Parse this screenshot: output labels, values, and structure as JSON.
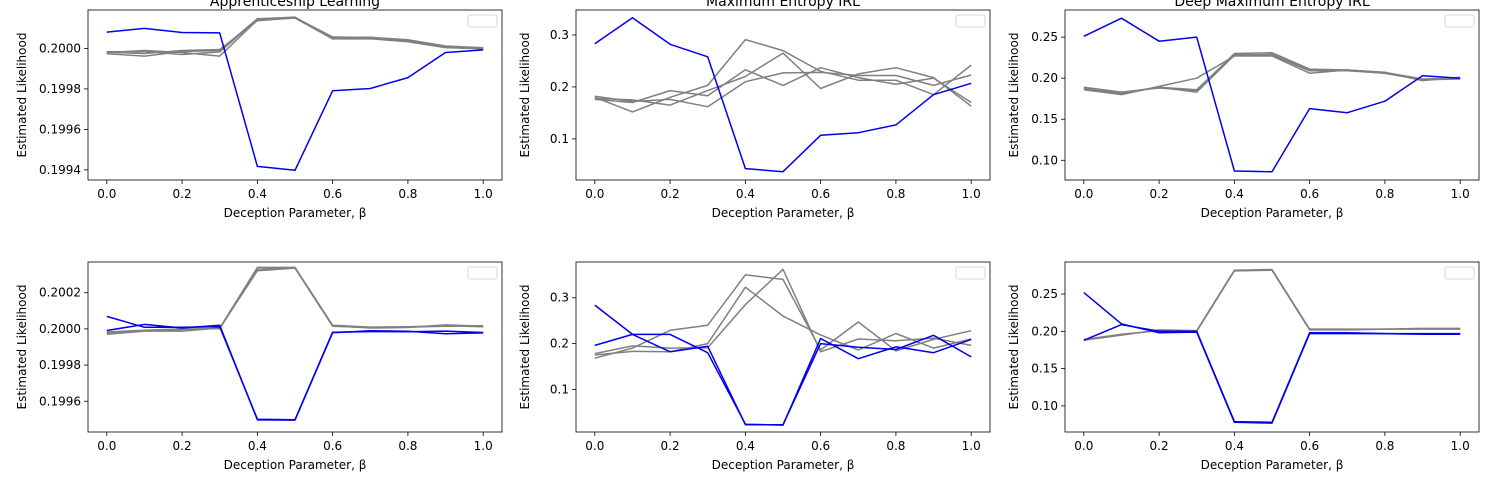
{
  "colors": {
    "highlight": "#0000ee",
    "others": "#808080"
  },
  "chart_data": [
    {
      "type": "line",
      "title": "Apprenticeship Learning",
      "xlabel": "Deception Parameter, β",
      "ylabel": "Estimated Likelihood",
      "xlim": [
        -0.05,
        1.05
      ],
      "ylim": [
        0.19935,
        0.20019
      ],
      "xticks": [
        0.0,
        0.2,
        0.4,
        0.6,
        0.8,
        1.0
      ],
      "xtick_labels": [
        "0.0",
        "0.2",
        "0.4",
        "0.6",
        "0.8",
        "1.0"
      ],
      "yticks": [
        0.1994,
        0.1996,
        0.1998,
        0.2
      ],
      "ytick_labels": [
        "0.1994",
        "0.1996",
        "0.1998",
        "0.2000"
      ],
      "legend": "top-right, empty",
      "x": [
        0.0,
        0.1,
        0.2,
        0.3,
        0.4,
        0.5,
        0.6,
        0.7,
        0.8,
        0.9,
        1.0
      ],
      "series": [
        {
          "name": "highlighted",
          "color": "blue",
          "values": [
            0.200081,
            0.200099,
            0.200079,
            0.200077,
            0.199417,
            0.199398,
            0.199791,
            0.199802,
            0.199856,
            0.19998,
            0.199993
          ]
        },
        {
          "name": "other-1",
          "color": "gray",
          "values": [
            0.199984,
            0.199985,
            0.19997,
            0.199983,
            0.200143,
            0.200153,
            0.200057,
            0.200052,
            0.20004,
            0.200009,
            0.200002
          ]
        },
        {
          "name": "other-2",
          "color": "gray",
          "values": [
            0.199974,
            0.199962,
            0.199985,
            0.19999,
            0.200147,
            0.200155,
            0.200051,
            0.20005,
            0.200037,
            0.200006,
            0.2
          ]
        },
        {
          "name": "other-3",
          "color": "gray",
          "values": [
            0.199979,
            0.19999,
            0.19998,
            0.199962,
            0.20014,
            0.20015,
            0.200047,
            0.200048,
            0.200033,
            0.200004,
            0.199998
          ]
        },
        {
          "name": "other-4",
          "color": "gray",
          "values": [
            0.199982,
            0.199975,
            0.19999,
            0.199995,
            0.200137,
            0.200152,
            0.200054,
            0.200055,
            0.200043,
            0.200012,
            0.200003
          ]
        }
      ]
    },
    {
      "type": "line",
      "title": "Maximum Entropy IRL",
      "xlabel": "Deception Parameter, β",
      "ylabel": "Estimated Likelihood",
      "xlim": [
        -0.05,
        1.05
      ],
      "ylim": [
        0.021,
        0.348
      ],
      "xticks": [
        0.0,
        0.2,
        0.4,
        0.6,
        0.8,
        1.0
      ],
      "xtick_labels": [
        "0.0",
        "0.2",
        "0.4",
        "0.6",
        "0.8",
        "1.0"
      ],
      "yticks": [
        0.1,
        0.2,
        0.3
      ],
      "ytick_labels": [
        "0.1",
        "0.2",
        "0.3"
      ],
      "legend": "top-right, empty",
      "x": [
        0.0,
        0.1,
        0.2,
        0.3,
        0.4,
        0.5,
        0.6,
        0.7,
        0.8,
        0.9,
        1.0
      ],
      "series": [
        {
          "name": "highlighted",
          "color": "blue",
          "values": [
            0.283,
            0.333,
            0.282,
            0.258,
            0.043,
            0.037,
            0.107,
            0.112,
            0.127,
            0.185,
            0.207
          ]
        },
        {
          "name": "other-1",
          "color": "gray",
          "values": [
            0.18,
            0.152,
            0.18,
            0.203,
            0.291,
            0.27,
            0.23,
            0.213,
            0.213,
            0.185,
            0.242
          ]
        },
        {
          "name": "other-2",
          "color": "gray",
          "values": [
            0.178,
            0.175,
            0.165,
            0.193,
            0.22,
            0.265,
            0.197,
            0.225,
            0.237,
            0.218,
            0.163
          ]
        },
        {
          "name": "other-3",
          "color": "gray",
          "values": [
            0.176,
            0.17,
            0.193,
            0.183,
            0.233,
            0.203,
            0.237,
            0.218,
            0.205,
            0.217,
            0.17
          ]
        },
        {
          "name": "other-4",
          "color": "gray",
          "values": [
            0.182,
            0.172,
            0.176,
            0.162,
            0.21,
            0.227,
            0.228,
            0.222,
            0.222,
            0.203,
            0.223
          ]
        }
      ]
    },
    {
      "type": "line",
      "title": "Deep Maximum Entropy IRL",
      "xlabel": "Deception Parameter, β",
      "ylabel": "Estimated Likelihood",
      "xlim": [
        -0.05,
        1.05
      ],
      "ylim": [
        0.076,
        0.283
      ],
      "xticks": [
        0.0,
        0.2,
        0.4,
        0.6,
        0.8,
        1.0
      ],
      "xtick_labels": [
        "0.0",
        "0.2",
        "0.4",
        "0.6",
        "0.8",
        "1.0"
      ],
      "yticks": [
        0.1,
        0.15,
        0.2,
        0.25
      ],
      "ytick_labels": [
        "0.10",
        "0.15",
        "0.20",
        "0.25"
      ],
      "legend": "top-right, empty",
      "x": [
        0.0,
        0.1,
        0.2,
        0.3,
        0.4,
        0.5,
        0.6,
        0.7,
        0.8,
        0.9,
        1.0
      ],
      "series": [
        {
          "name": "highlighted",
          "color": "blue",
          "values": [
            0.251,
            0.273,
            0.245,
            0.25,
            0.087,
            0.086,
            0.163,
            0.158,
            0.172,
            0.203,
            0.2
          ]
        },
        {
          "name": "other-1",
          "color": "gray",
          "values": [
            0.188,
            0.181,
            0.189,
            0.183,
            0.228,
            0.229,
            0.21,
            0.21,
            0.207,
            0.199,
            0.2
          ]
        },
        {
          "name": "other-2",
          "color": "gray",
          "values": [
            0.186,
            0.18,
            0.19,
            0.2,
            0.227,
            0.227,
            0.206,
            0.21,
            0.206,
            0.198,
            0.199
          ]
        },
        {
          "name": "other-3",
          "color": "gray",
          "values": [
            0.189,
            0.183,
            0.188,
            0.185,
            0.23,
            0.231,
            0.211,
            0.21,
            0.207,
            0.197,
            0.201
          ]
        },
        {
          "name": "other-4",
          "color": "gray",
          "values": [
            0.187,
            0.182,
            0.189,
            0.186,
            0.229,
            0.228,
            0.209,
            0.209,
            0.206,
            0.198,
            0.2
          ]
        }
      ]
    },
    {
      "type": "line",
      "title": "",
      "xlabel": "Deception Parameter, β",
      "ylabel": "Estimated Likelihood",
      "xlim": [
        -0.05,
        1.05
      ],
      "ylim": [
        0.19943,
        0.20037
      ],
      "xticks": [
        0.0,
        0.2,
        0.4,
        0.6,
        0.8,
        1.0
      ],
      "xtick_labels": [
        "0.0",
        "0.2",
        "0.4",
        "0.6",
        "0.8",
        "1.0"
      ],
      "yticks": [
        0.1996,
        0.1998,
        0.2,
        0.2002
      ],
      "ytick_labels": [
        "0.1996",
        "0.1998",
        "0.2000",
        "0.2002"
      ],
      "legend": "top-right, empty",
      "x": [
        0.0,
        0.1,
        0.2,
        0.3,
        0.4,
        0.5,
        0.6,
        0.7,
        0.8,
        0.9,
        1.0
      ],
      "series": [
        {
          "name": "highlighted-1",
          "color": "blue",
          "values": [
            0.200069,
            0.200009,
            0.200009,
            0.200012,
            0.199501,
            0.199498,
            0.199982,
            0.199985,
            0.199984,
            0.199988,
            0.19998
          ]
        },
        {
          "name": "highlighted-2",
          "color": "blue",
          "values": [
            0.199991,
            0.200025,
            0.200005,
            0.20002,
            0.199497,
            0.199496,
            0.199979,
            0.19999,
            0.199987,
            0.199973,
            0.199978
          ]
        },
        {
          "name": "other-1",
          "color": "gray",
          "values": [
            0.19997,
            0.199988,
            0.199988,
            0.200005,
            0.20034,
            0.20034,
            0.20002,
            0.20001,
            0.200012,
            0.200017,
            0.200012
          ]
        },
        {
          "name": "other-2",
          "color": "gray",
          "values": [
            0.199983,
            0.199993,
            0.2,
            0.200001,
            0.20033,
            0.200338,
            0.200017,
            0.200005,
            0.200008,
            0.200022,
            0.200015
          ]
        },
        {
          "name": "other-3",
          "color": "gray",
          "values": [
            0.199978,
            0.199991,
            0.199996,
            0.200003,
            0.200322,
            0.200336,
            0.200015,
            0.200008,
            0.20001,
            0.200015,
            0.200018
          ]
        }
      ]
    },
    {
      "type": "line",
      "title": "",
      "xlabel": "Deception Parameter, β",
      "ylabel": "Estimated Likelihood",
      "xlim": [
        -0.05,
        1.05
      ],
      "ylim": [
        0.007,
        0.378
      ],
      "xticks": [
        0.0,
        0.2,
        0.4,
        0.6,
        0.8,
        1.0
      ],
      "xtick_labels": [
        "0.0",
        "0.2",
        "0.4",
        "0.6",
        "0.8",
        "1.0"
      ],
      "yticks": [
        0.1,
        0.2,
        0.3
      ],
      "ytick_labels": [
        "0.1",
        "0.2",
        "0.3"
      ],
      "legend": "top-right, empty",
      "x": [
        0.0,
        0.1,
        0.2,
        0.3,
        0.4,
        0.5,
        0.6,
        0.7,
        0.8,
        0.9,
        1.0
      ],
      "series": [
        {
          "name": "highlighted-1",
          "color": "blue",
          "values": [
            0.284,
            0.22,
            0.22,
            0.18,
            0.024,
            0.022,
            0.211,
            0.167,
            0.193,
            0.18,
            0.209
          ]
        },
        {
          "name": "highlighted-2",
          "color": "blue",
          "values": [
            0.196,
            0.22,
            0.182,
            0.194,
            0.023,
            0.023,
            0.2,
            0.192,
            0.187,
            0.218,
            0.171
          ]
        },
        {
          "name": "other-1",
          "color": "gray",
          "values": [
            0.168,
            0.19,
            0.229,
            0.24,
            0.35,
            0.34,
            0.186,
            0.247,
            0.184,
            0.209,
            0.228
          ]
        },
        {
          "name": "other-2",
          "color": "gray",
          "values": [
            0.175,
            0.183,
            0.182,
            0.2,
            0.323,
            0.26,
            0.219,
            0.186,
            0.222,
            0.19,
            0.21
          ]
        },
        {
          "name": "other-3",
          "color": "gray",
          "values": [
            0.178,
            0.195,
            0.19,
            0.191,
            0.285,
            0.362,
            0.182,
            0.21,
            0.206,
            0.212,
            0.196
          ]
        }
      ]
    },
    {
      "type": "line",
      "title": "",
      "xlabel": "Deception Parameter, β",
      "ylabel": "Estimated Likelihood",
      "xlim": [
        -0.05,
        1.05
      ],
      "ylim": [
        0.065,
        0.293
      ],
      "xticks": [
        0.0,
        0.2,
        0.4,
        0.6,
        0.8,
        1.0
      ],
      "xtick_labels": [
        "0.0",
        "0.2",
        "0.4",
        "0.6",
        "0.8",
        "1.0"
      ],
      "yticks": [
        0.1,
        0.15,
        0.2,
        0.25
      ],
      "ytick_labels": [
        "0.10",
        "0.15",
        "0.20",
        "0.25"
      ],
      "legend": "top-right, empty",
      "x": [
        0.0,
        0.1,
        0.2,
        0.3,
        0.4,
        0.5,
        0.6,
        0.7,
        0.8,
        0.9,
        1.0
      ],
      "series": [
        {
          "name": "highlighted-1",
          "color": "blue",
          "values": [
            0.252,
            0.21,
            0.198,
            0.199,
            0.078,
            0.077,
            0.197,
            0.197,
            0.197,
            0.196,
            0.196
          ]
        },
        {
          "name": "highlighted-2",
          "color": "blue",
          "values": [
            0.188,
            0.209,
            0.2,
            0.2,
            0.079,
            0.078,
            0.198,
            0.198,
            0.197,
            0.197,
            0.197
          ]
        },
        {
          "name": "other-1",
          "color": "gray",
          "values": [
            0.188,
            0.195,
            0.202,
            0.201,
            0.282,
            0.283,
            0.203,
            0.203,
            0.203,
            0.204,
            0.204
          ]
        },
        {
          "name": "other-2",
          "color": "gray",
          "values": [
            0.189,
            0.196,
            0.201,
            0.2,
            0.281,
            0.282,
            0.202,
            0.202,
            0.203,
            0.203,
            0.203
          ]
        }
      ]
    }
  ]
}
